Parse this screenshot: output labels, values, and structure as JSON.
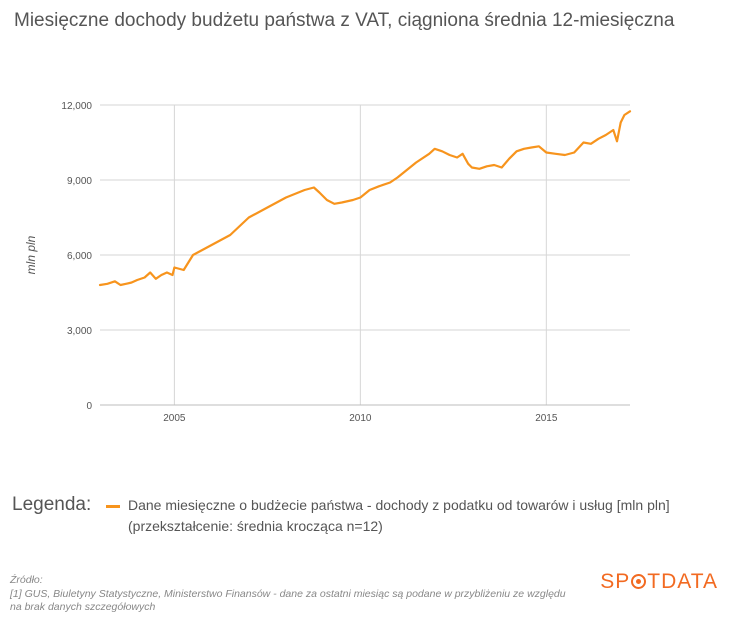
{
  "title": "Miesięczne dochody budżetu państwa z VAT, ciągniona średnia 12-miesięczna",
  "legend": {
    "heading": "Legenda:",
    "entry": "Dane miesięczne o budżecie państwa - dochody z podatku od towarów i usług [mln pln] (przekształcenie: średnia krocząca n=12)"
  },
  "source": {
    "heading": "Źródło:",
    "text": "[1] GUS, Biuletyny Statystyczne, Ministerstwo Finansów - dane za ostatni miesiąc są podane w przybliżeniu ze względu na brak danych szczegółowych"
  },
  "brand": {
    "before": "SP",
    "after": "TDATA"
  },
  "colors": {
    "series": "#f7941d",
    "grid": "#d6d6d6",
    "brand": "#f26a21"
  },
  "chart_data": {
    "type": "line",
    "ylabel": "mln pln",
    "ylim": [
      0,
      12000
    ],
    "xlim": [
      2003.0,
      2017.25
    ],
    "yticks": [
      0,
      3000,
      6000,
      9000,
      12000
    ],
    "ytick_labels": [
      "0",
      "3,000",
      "6,000",
      "9,000",
      "12,000"
    ],
    "xticks": [
      2005,
      2010,
      2015
    ],
    "xtick_labels": [
      "2005",
      "2010",
      "2015"
    ],
    "grid": true,
    "legend_position": "bottom",
    "series": [
      {
        "name": "Dane miesięczne o budżecie państwa - dochody z podatku od towarów i usług [mln pln] (przekształcenie: średnia krocząca n=12)",
        "x": [
          2003.0,
          2003.2,
          2003.4,
          2003.55,
          2003.7,
          2003.85,
          2004.0,
          2004.2,
          2004.35,
          2004.5,
          2004.65,
          2004.8,
          2004.95,
          2005.0,
          2005.25,
          2005.5,
          2005.75,
          2006.0,
          2006.5,
          2007.0,
          2007.5,
          2008.0,
          2008.5,
          2008.75,
          2008.9,
          2009.1,
          2009.3,
          2009.5,
          2009.8,
          2010.0,
          2010.25,
          2010.5,
          2010.8,
          2011.0,
          2011.5,
          2011.85,
          2012.0,
          2012.2,
          2012.4,
          2012.6,
          2012.75,
          2012.9,
          2013.0,
          2013.2,
          2013.4,
          2013.6,
          2013.8,
          2014.0,
          2014.2,
          2014.4,
          2014.6,
          2014.8,
          2015.0,
          2015.25,
          2015.5,
          2015.75,
          2016.0,
          2016.2,
          2016.4,
          2016.6,
          2016.8,
          2016.9,
          2017.0,
          2017.1,
          2017.25
        ],
        "y": [
          4800,
          4850,
          4950,
          4800,
          4850,
          4900,
          5000,
          5100,
          5300,
          5050,
          5200,
          5300,
          5200,
          5500,
          5400,
          6000,
          6200,
          6400,
          6800,
          7500,
          7900,
          8300,
          8600,
          8700,
          8500,
          8200,
          8050,
          8100,
          8200,
          8300,
          8600,
          8750,
          8900,
          9100,
          9700,
          10050,
          10250,
          10150,
          10000,
          9900,
          10050,
          9650,
          9500,
          9450,
          9550,
          9600,
          9500,
          9850,
          10150,
          10250,
          10300,
          10350,
          10100,
          10050,
          10000,
          10100,
          10500,
          10450,
          10650,
          10800,
          11000,
          10550,
          11300,
          11600,
          11750
        ]
      }
    ]
  }
}
